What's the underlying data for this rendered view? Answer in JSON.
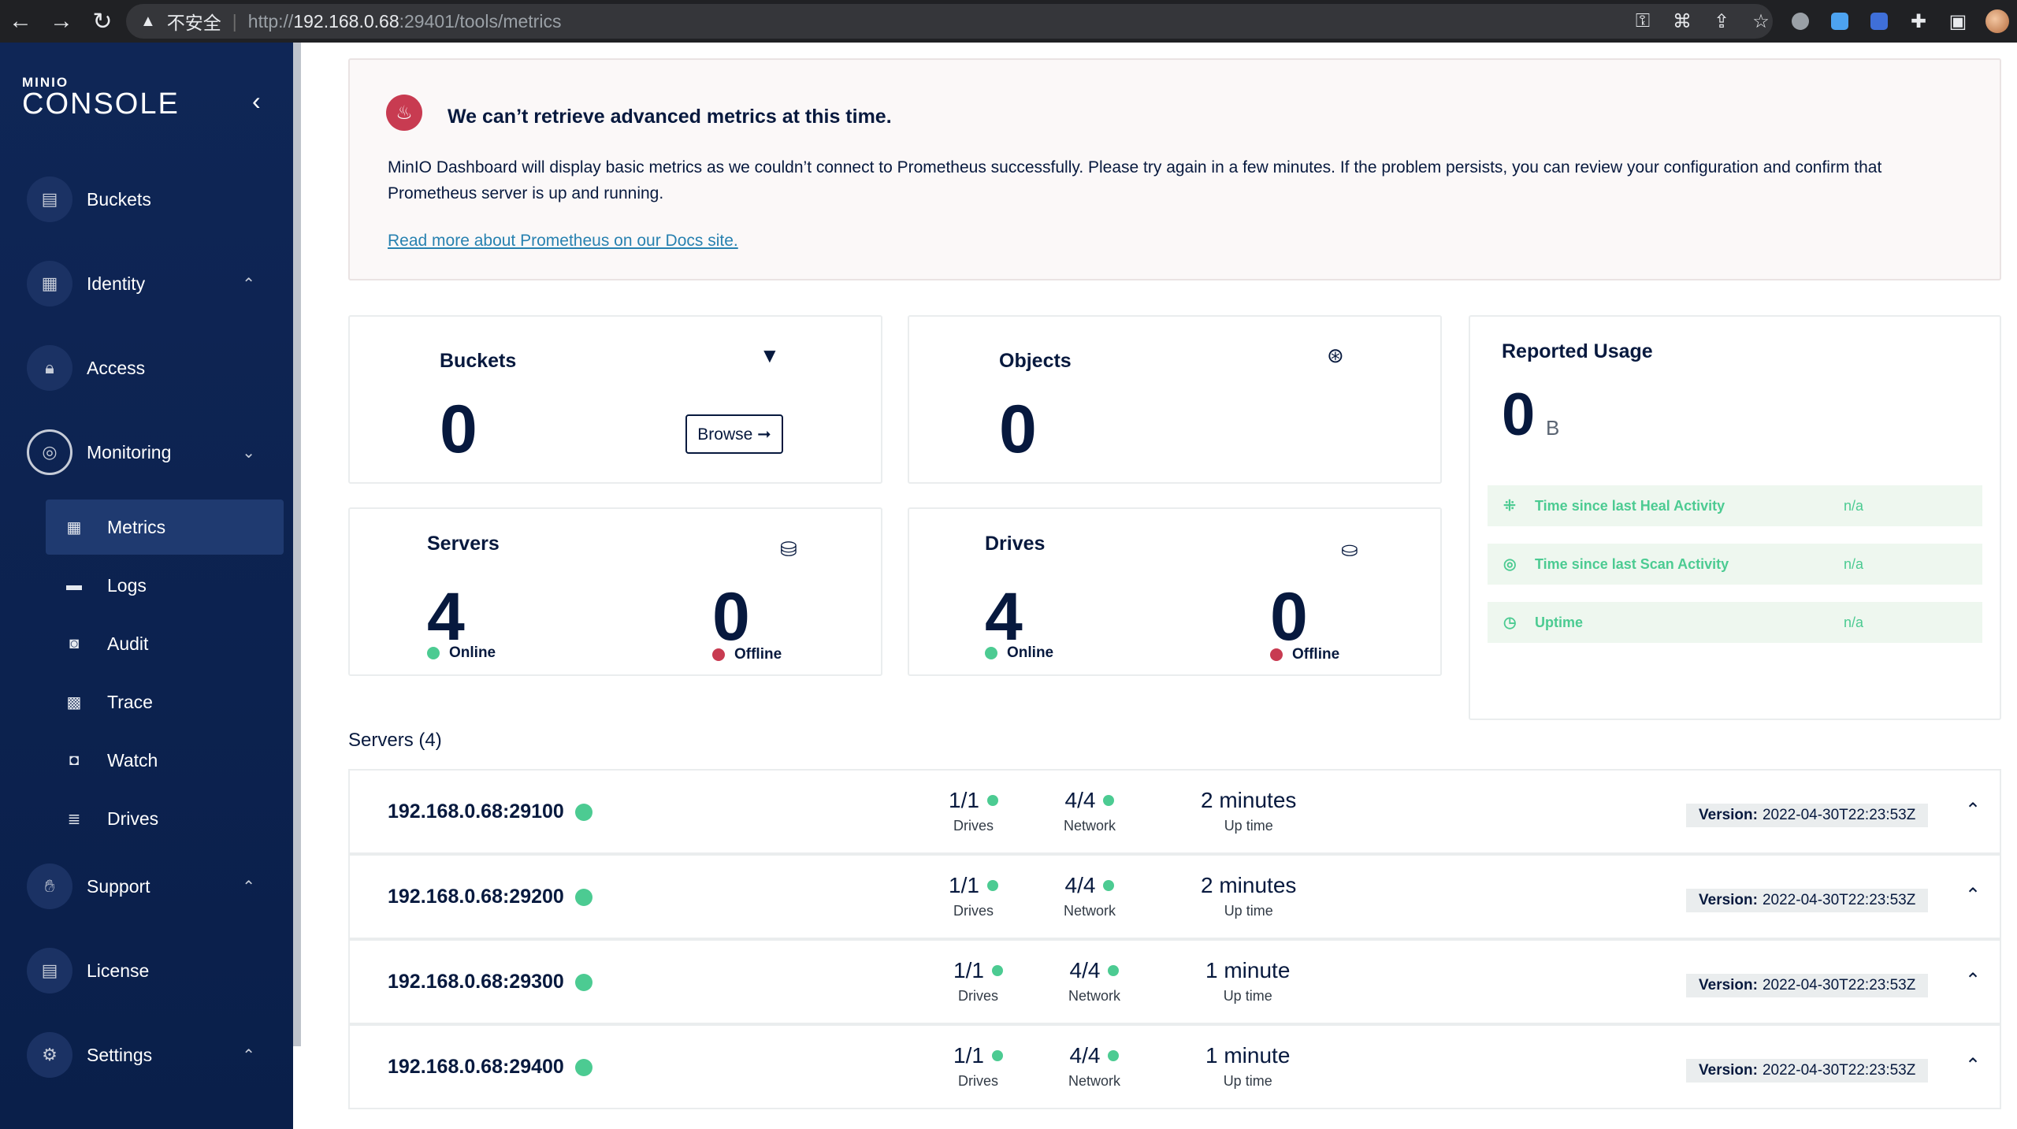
{
  "browser": {
    "back_icon": "←",
    "forward_icon": "→",
    "reload_icon": "↻",
    "insecure_label": "不安全",
    "url_scheme": "http://",
    "url_host": "192.168.0.68",
    "url_path": ":29401/tools/metrics"
  },
  "sidebar": {
    "logo_small": "MINIO",
    "logo_big": "CONSOLE",
    "collapse_icon": "‹",
    "items": [
      {
        "label": "Buckets",
        "icon": "bucket-icon"
      },
      {
        "label": "Identity",
        "icon": "identity-icon"
      },
      {
        "label": "Access",
        "icon": "lock-icon"
      },
      {
        "label": "Monitoring",
        "icon": "monitoring-icon"
      },
      {
        "label": "Support",
        "icon": "support-icon"
      },
      {
        "label": "License",
        "icon": "license-icon"
      },
      {
        "label": "Settings",
        "icon": "gear-icon"
      }
    ],
    "monitoring_sub": [
      {
        "label": "Metrics",
        "icon": "grid-icon"
      },
      {
        "label": "Logs",
        "icon": "logs-icon"
      },
      {
        "label": "Audit",
        "icon": "audit-icon"
      },
      {
        "label": "Trace",
        "icon": "trace-icon"
      },
      {
        "label": "Watch",
        "icon": "watch-icon"
      },
      {
        "label": "Drives",
        "icon": "drives-icon"
      }
    ]
  },
  "alert": {
    "title": "We can’t retrieve advanced metrics at this time.",
    "text": "MinIO Dashboard will display basic metrics as we couldn’t connect to Prometheus successfully. Please try again in a few minutes. If the problem persists, you can review your configuration and confirm that Prometheus server is up and running.",
    "link": "Read more about Prometheus on our Docs site."
  },
  "cards": {
    "buckets": {
      "title": "Buckets",
      "value": "0",
      "browse": "Browse ➞"
    },
    "objects": {
      "title": "Objects",
      "value": "0"
    },
    "servers": {
      "title": "Servers",
      "online": "4",
      "online_label": "Online",
      "offline": "0",
      "offline_label": "Offline"
    },
    "drives": {
      "title": "Drives",
      "online": "4",
      "online_label": "Online",
      "offline": "0",
      "offline_label": "Offline"
    },
    "usage": {
      "title": "Reported Usage",
      "value": "0",
      "unit": "B",
      "rows": [
        {
          "label": "Time since last Heal Activity",
          "value": "n/a"
        },
        {
          "label": "Time since last Scan Activity",
          "value": "n/a"
        },
        {
          "label": "Uptime",
          "value": "n/a"
        }
      ]
    }
  },
  "servers_heading": "Servers (4)",
  "servers": [
    {
      "name": "192.168.0.68:29100",
      "drives": "1/1",
      "network": "4/4",
      "uptime": "2 minutes",
      "version": "2022-04-30T22:23:53Z"
    },
    {
      "name": "192.168.0.68:29200",
      "drives": "1/1",
      "network": "4/4",
      "uptime": "2 minutes",
      "version": "2022-04-30T22:23:53Z"
    },
    {
      "name": "192.168.0.68:29300",
      "drives": "1/1",
      "network": "4/4",
      "uptime": "1 minute",
      "version": "2022-04-30T22:23:53Z"
    },
    {
      "name": "192.168.0.68:29400",
      "drives": "1/1",
      "network": "4/4",
      "uptime": "1 minute",
      "version": "2022-04-30T22:23:53Z"
    }
  ],
  "labels": {
    "drives": "Drives",
    "network": "Network",
    "uptime": "Up time",
    "version": "Version:"
  },
  "colors": {
    "sidebar_bg": "#0f2656",
    "online": "#4ccb92",
    "offline": "#c83b51",
    "text": "#07193e"
  }
}
